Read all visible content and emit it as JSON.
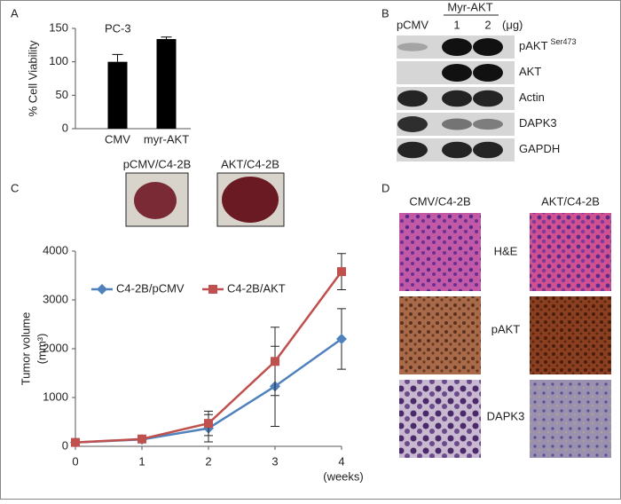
{
  "panel_labels": [
    "A",
    "B",
    "C",
    "D"
  ],
  "chart_data": [
    {
      "type": "bar",
      "title": "PC-3",
      "y_label": "% Cell Viability",
      "categories": [
        "CMV",
        "myr-AKT"
      ],
      "values": [
        100,
        134
      ],
      "errors": [
        11,
        3
      ],
      "color": "#000000",
      "ylim": [
        0,
        150
      ],
      "yticks": [
        0,
        50,
        100,
        150
      ]
    },
    {
      "type": "line",
      "y_label": "Tumor volume",
      "y_label_unit": "(mm³)",
      "x_label": "(weeks)",
      "x": [
        0,
        1,
        2,
        3,
        4
      ],
      "xlim": [
        0,
        4
      ],
      "xticks": [
        0,
        1,
        2,
        3,
        4
      ],
      "ylim": [
        0,
        4000
      ],
      "yticks": [
        0,
        1000,
        2000,
        3000,
        4000
      ],
      "series": [
        {
          "name": "C4-2B/pCMV",
          "color": "#4f81bd",
          "marker": "diamond",
          "values": [
            80,
            140,
            370,
            1230,
            2200
          ],
          "errors": [
            30,
            60,
            280,
            820,
            620
          ]
        },
        {
          "name": "C4-2B/AKT",
          "color": "#c0504d",
          "marker": "square",
          "values": [
            80,
            150,
            470,
            1740,
            3580
          ],
          "errors": [
            30,
            60,
            250,
            700,
            370
          ]
        }
      ]
    }
  ],
  "blot": {
    "header": "Myr-AKT",
    "lanes": [
      "pCMV",
      "1",
      "2"
    ],
    "unit": "(μg)",
    "rows": [
      {
        "label": "pAKT",
        "sup": "Ser473"
      },
      {
        "label": "AKT"
      },
      {
        "label": "Actin"
      },
      {
        "label": "DAPK3"
      },
      {
        "label": "GAPDH"
      }
    ]
  },
  "tumors": [
    "pCMV/C4-2B",
    "AKT/C4-2B"
  ],
  "histology": {
    "columns": [
      "CMV/C4-2B",
      "AKT/C4-2B"
    ],
    "rows": [
      "H&E",
      "pAKT",
      "DAPK3"
    ]
  }
}
